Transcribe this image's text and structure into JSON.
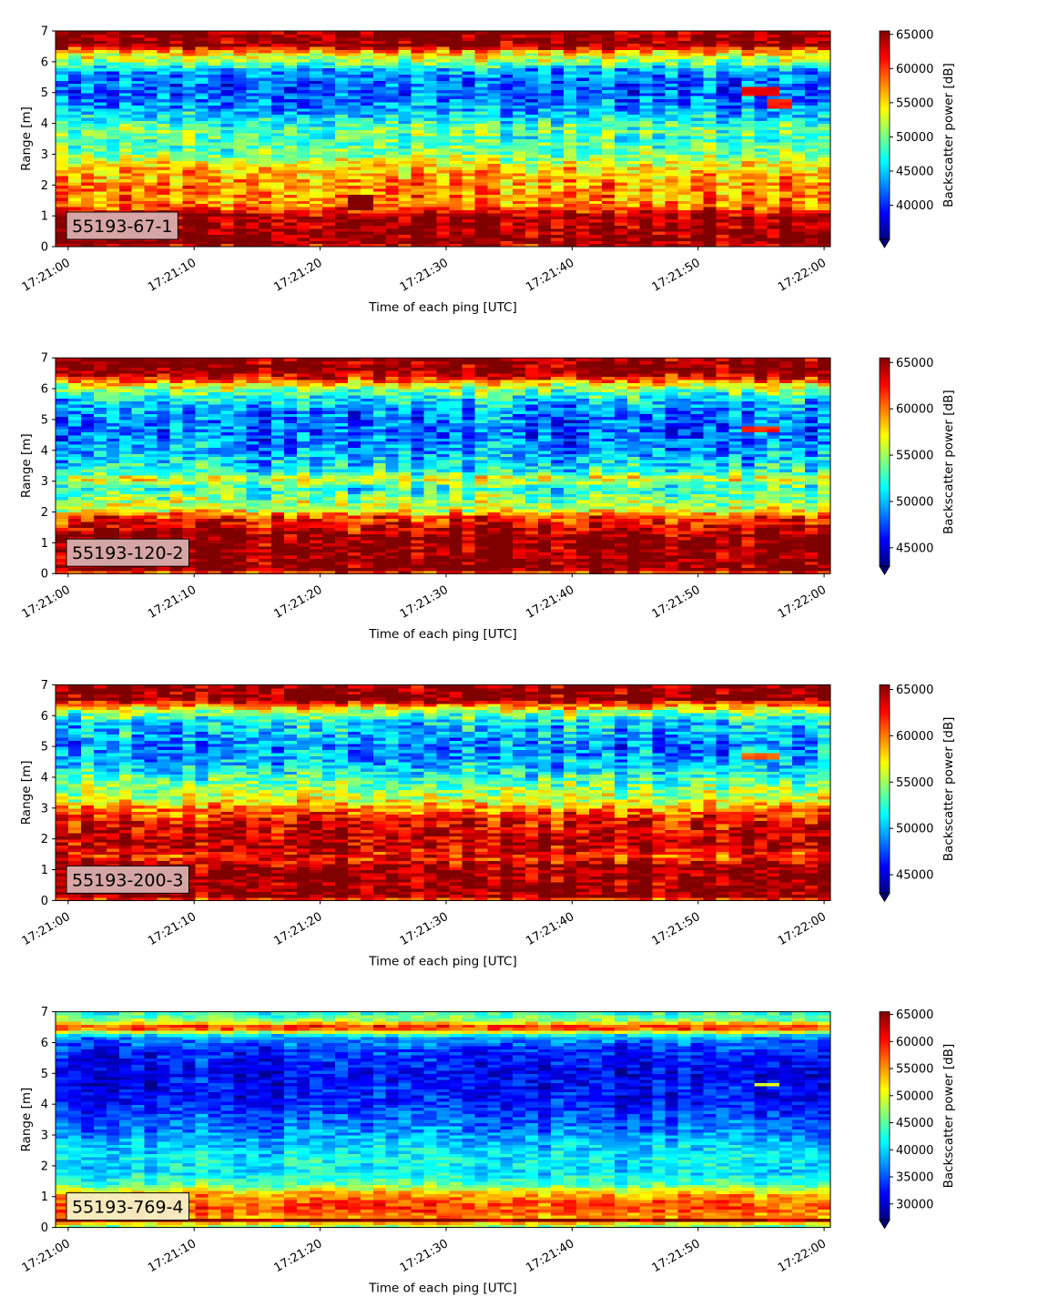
{
  "figure": {
    "background": "#ffffff"
  },
  "chart_data": [
    {
      "type": "heatmap",
      "id": "panel-1",
      "label": "55193-67-1",
      "label_box_color": "#d9aeae",
      "xlabel": "Time of each ping [UTC]",
      "ylabel": "Range [m]",
      "xlim": [
        "17:20:59",
        "17:22:00.5"
      ],
      "ylim": [
        0,
        7
      ],
      "x_ticks": [
        "17:21:00",
        "17:21:10",
        "17:21:20",
        "17:21:30",
        "17:21:40",
        "17:21:50",
        "17:22:00"
      ],
      "y_ticks": [
        0,
        1,
        2,
        3,
        4,
        5,
        6,
        7
      ],
      "colorbar": {
        "label": "Backscatter power [dB]",
        "colormap": "jet",
        "vmin": 35000,
        "vmax": 65500,
        "ticks": [
          40000,
          45000,
          50000,
          55000,
          60000,
          65000
        ],
        "extend": "min"
      },
      "profile_m_to_value": [
        [
          0,
          62000
        ],
        [
          0.15,
          65500
        ],
        [
          0.3,
          65500
        ],
        [
          1.0,
          65000
        ],
        [
          1.12,
          62000
        ],
        [
          1.35,
          58000
        ],
        [
          2.0,
          57500
        ],
        [
          2.6,
          55500
        ],
        [
          3.0,
          50500
        ],
        [
          3.5,
          48500
        ],
        [
          3.8,
          50000
        ],
        [
          4.2,
          46000
        ],
        [
          4.6,
          43000
        ],
        [
          5.2,
          41500
        ],
        [
          5.7,
          44000
        ],
        [
          6.0,
          50500
        ],
        [
          6.35,
          57000
        ],
        [
          6.55,
          65500
        ],
        [
          7.0,
          65500
        ]
      ],
      "noise": 5200,
      "features": [
        {
          "t0": 53.5,
          "t1": 56.0,
          "r0": 4.95,
          "r1": 5.2,
          "value": 62000
        },
        {
          "t0": 55.5,
          "t1": 57.5,
          "r0": 4.55,
          "r1": 4.85,
          "value": 61000
        },
        {
          "t0": 22.5,
          "t1": 24.5,
          "r0": 1.2,
          "r1": 1.7,
          "value": 65500
        }
      ]
    },
    {
      "type": "heatmap",
      "id": "panel-2",
      "label": "55193-120-2",
      "label_box_color": "#d9aeae",
      "xlabel": "Time of each ping [UTC]",
      "ylabel": "Range [m]",
      "xlim": [
        "17:20:59",
        "17:22:00.5"
      ],
      "ylim": [
        0,
        7
      ],
      "x_ticks": [
        "17:21:00",
        "17:21:10",
        "17:21:20",
        "17:21:30",
        "17:21:40",
        "17:21:50",
        "17:22:00"
      ],
      "y_ticks": [
        0,
        1,
        2,
        3,
        4,
        5,
        6,
        7
      ],
      "colorbar": {
        "label": "Backscatter power [dB]",
        "colormap": "jet",
        "vmin": 43000,
        "vmax": 65500,
        "ticks": [
          45000,
          50000,
          55000,
          60000,
          65000
        ],
        "extend": "min"
      },
      "profile_m_to_value": [
        [
          0,
          57000
        ],
        [
          0.1,
          65500
        ],
        [
          1.2,
          65500
        ],
        [
          1.55,
          63000
        ],
        [
          1.85,
          61500
        ],
        [
          2.05,
          56500
        ],
        [
          2.4,
          54500
        ],
        [
          2.8,
          52000
        ],
        [
          3.1,
          57000
        ],
        [
          3.3,
          52000
        ],
        [
          3.8,
          50000
        ],
        [
          4.5,
          48000
        ],
        [
          5.2,
          48500
        ],
        [
          5.7,
          51000
        ],
        [
          6.1,
          56000
        ],
        [
          6.35,
          62000
        ],
        [
          6.6,
          65500
        ],
        [
          7.0,
          65500
        ]
      ],
      "noise": 4200,
      "features": [
        {
          "t0": 53.5,
          "t1": 56.5,
          "r0": 4.65,
          "r1": 4.85,
          "value": 62000
        }
      ]
    },
    {
      "type": "heatmap",
      "id": "panel-3",
      "label": "55193-200-3",
      "label_box_color": "#d9aeae",
      "xlabel": "Time of each ping [UTC]",
      "ylabel": "Range [m]",
      "xlim": [
        "17:20:59",
        "17:22:00.5"
      ],
      "ylim": [
        0,
        7
      ],
      "x_ticks": [
        "17:21:00",
        "17:21:10",
        "17:21:20",
        "17:21:30",
        "17:21:40",
        "17:21:50",
        "17:22:00"
      ],
      "y_ticks": [
        0,
        1,
        2,
        3,
        4,
        5,
        6,
        7
      ],
      "colorbar": {
        "label": "Backscatter power [dB]",
        "colormap": "jet",
        "vmin": 43000,
        "vmax": 65500,
        "ticks": [
          45000,
          50000,
          55000,
          60000,
          65000
        ],
        "extend": "min"
      },
      "profile_m_to_value": [
        [
          0,
          58000
        ],
        [
          0.1,
          65500
        ],
        [
          1.1,
          65500
        ],
        [
          1.4,
          62000
        ],
        [
          1.8,
          64500
        ],
        [
          2.5,
          63500
        ],
        [
          2.9,
          61000
        ],
        [
          3.3,
          56500
        ],
        [
          3.8,
          54000
        ],
        [
          4.4,
          50500
        ],
        [
          5.0,
          49000
        ],
        [
          5.8,
          51000
        ],
        [
          6.1,
          54500
        ],
        [
          6.35,
          60000
        ],
        [
          6.55,
          65500
        ],
        [
          7.0,
          65500
        ]
      ],
      "noise": 4200,
      "features": [
        {
          "t0": 53.5,
          "t1": 56.5,
          "r0": 4.6,
          "r1": 4.8,
          "value": 60500
        }
      ]
    },
    {
      "type": "heatmap",
      "id": "panel-4",
      "label": "55193-769-4",
      "label_box_color": "#f6efc8",
      "xlabel": "Time of each ping [UTC]",
      "ylabel": "Range [m]",
      "xlim": [
        "17:20:59",
        "17:22:00.5"
      ],
      "ylim": [
        0,
        7
      ],
      "x_ticks": [
        "17:21:00",
        "17:21:10",
        "17:21:20",
        "17:21:30",
        "17:21:40",
        "17:21:50",
        "17:22:00"
      ],
      "y_ticks": [
        0,
        1,
        2,
        3,
        4,
        5,
        6,
        7
      ],
      "colorbar": {
        "label": "Backscatter power [dB]",
        "colormap": "jet",
        "vmin": 27000,
        "vmax": 65500,
        "ticks": [
          30000,
          35000,
          40000,
          45000,
          50000,
          55000,
          60000,
          65000
        ],
        "extend": "min"
      },
      "profile_m_to_value": [
        [
          0,
          48000
        ],
        [
          0.1,
          46000
        ],
        [
          0.25,
          65500
        ],
        [
          0.35,
          55000
        ],
        [
          0.6,
          58000
        ],
        [
          0.85,
          57000
        ],
        [
          1.1,
          54000
        ],
        [
          1.4,
          45000
        ],
        [
          1.8,
          40500
        ],
        [
          2.2,
          41500
        ],
        [
          2.6,
          40000
        ],
        [
          3.2,
          36500
        ],
        [
          4.2,
          32500
        ],
        [
          5.0,
          31500
        ],
        [
          5.8,
          33500
        ],
        [
          6.2,
          38000
        ],
        [
          6.5,
          61000
        ],
        [
          6.75,
          47000
        ],
        [
          7.0,
          43000
        ]
      ],
      "noise": 4600,
      "features": [
        {
          "t0": 54.5,
          "t1": 56.5,
          "r0": 4.58,
          "r1": 4.72,
          "value": 50000
        }
      ]
    }
  ]
}
